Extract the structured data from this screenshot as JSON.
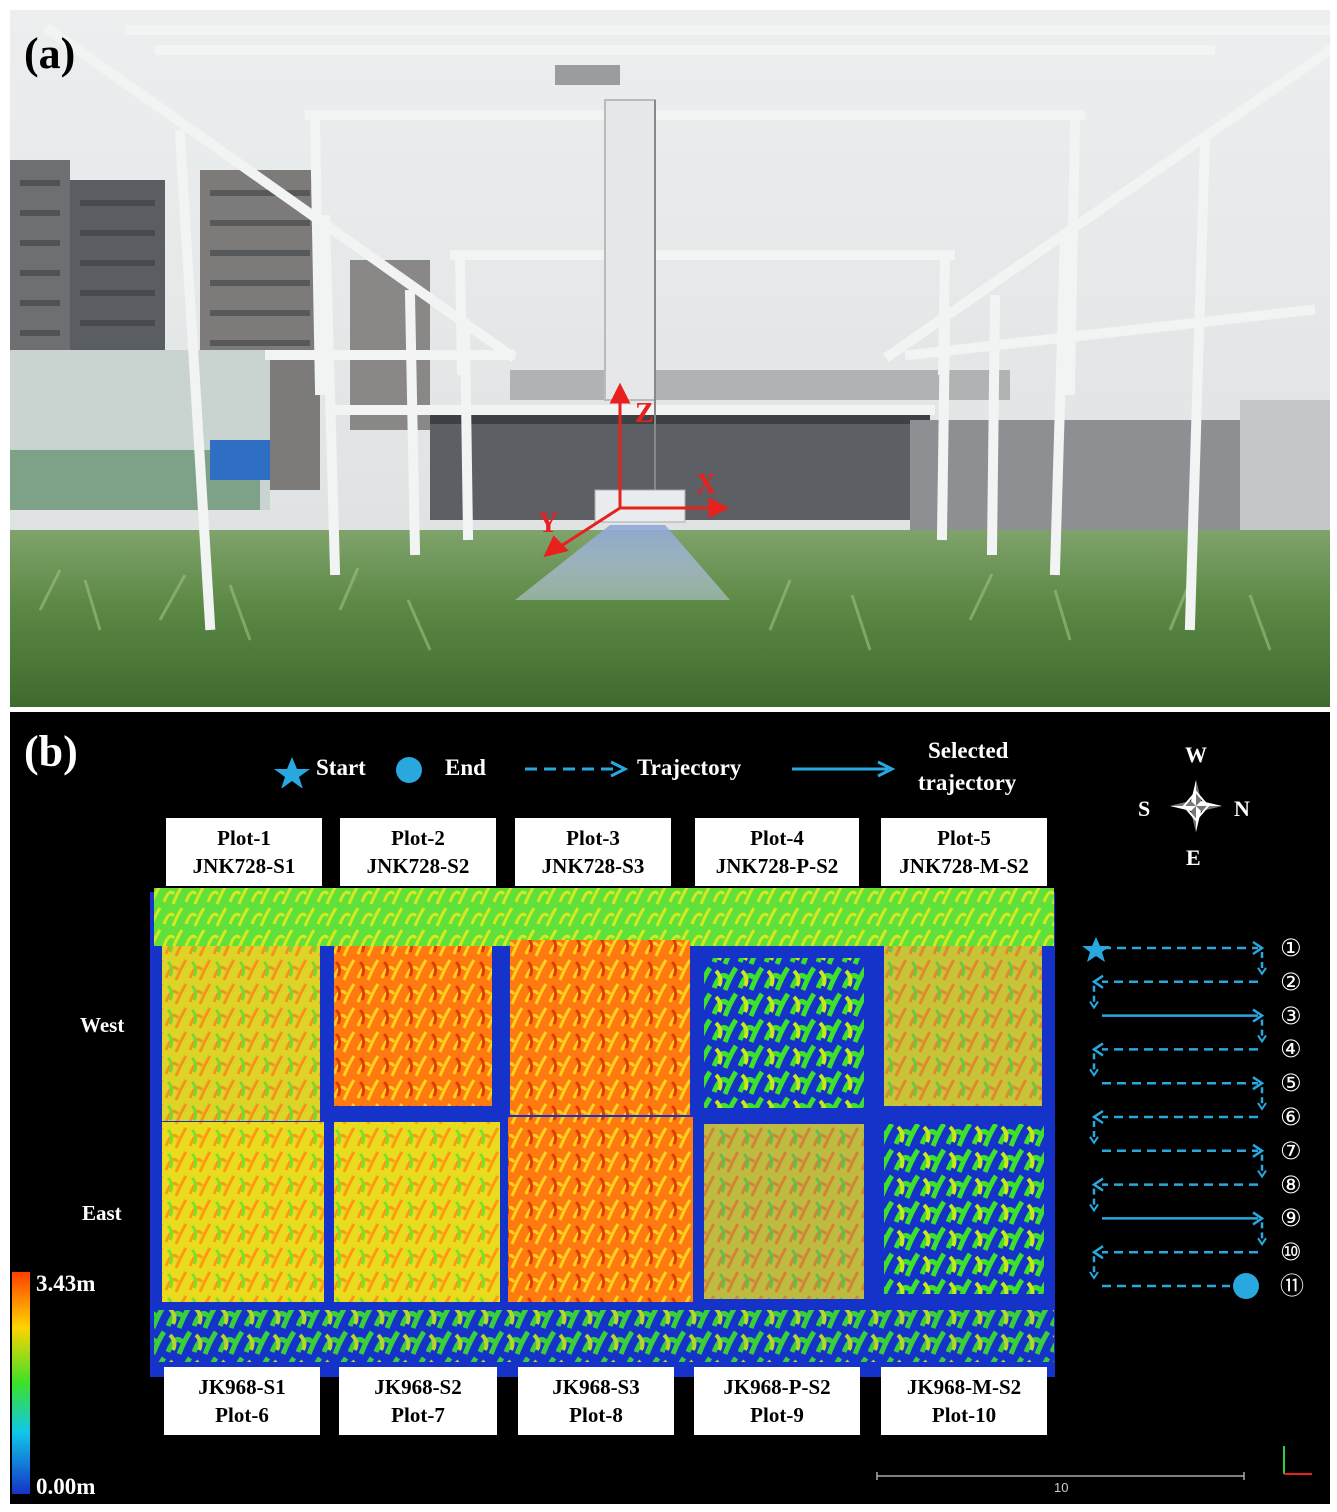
{
  "panel_a": {
    "label": "(a)",
    "axes": {
      "x": "X",
      "y": "Y",
      "z": "Z"
    }
  },
  "panel_b": {
    "label": "(b)",
    "legend": {
      "start": "Start",
      "end": "End",
      "trajectory": "Trajectory",
      "selected_line1": "Selected",
      "selected_line2": "trajectory"
    },
    "compass": {
      "north": "N",
      "south": "S",
      "east": "E",
      "west": "W"
    },
    "top_plots": [
      {
        "line1": "Plot-1",
        "line2": "JNK728-S1"
      },
      {
        "line1": "Plot-2",
        "line2": "JNK728-S2"
      },
      {
        "line1": "Plot-3",
        "line2": "JNK728-S3"
      },
      {
        "line1": "Plot-4",
        "line2": "JNK728-P-S2"
      },
      {
        "line1": "Plot-5",
        "line2": "JNK728-M-S2"
      }
    ],
    "bottom_plots": [
      {
        "line1": "JK968-S1",
        "line2": "Plot-6"
      },
      {
        "line1": "JK968-S2",
        "line2": "Plot-7"
      },
      {
        "line1": "JK968-S3",
        "line2": "Plot-8"
      },
      {
        "line1": "JK968-P-S2",
        "line2": "Plot-9"
      },
      {
        "line1": "JK968-M-S2",
        "line2": "Plot-10"
      }
    ],
    "side_labels": {
      "west": "West",
      "east": "East"
    },
    "colorbar": {
      "max": "3.43m",
      "min": "0.00m"
    },
    "trajectory_numbers": [
      "①",
      "②",
      "③",
      "④",
      "⑤",
      "⑥",
      "⑦",
      "⑧",
      "⑨",
      "⑩",
      "⑪"
    ],
    "selected_rows": [
      3,
      9
    ],
    "scale_bar": {
      "value": "10"
    },
    "colors": {
      "trajectory": "#29a8e0",
      "ground": "#1533c8",
      "tall": "#ff5a00",
      "mid": "#e8e020",
      "low": "#3de02a"
    }
  }
}
